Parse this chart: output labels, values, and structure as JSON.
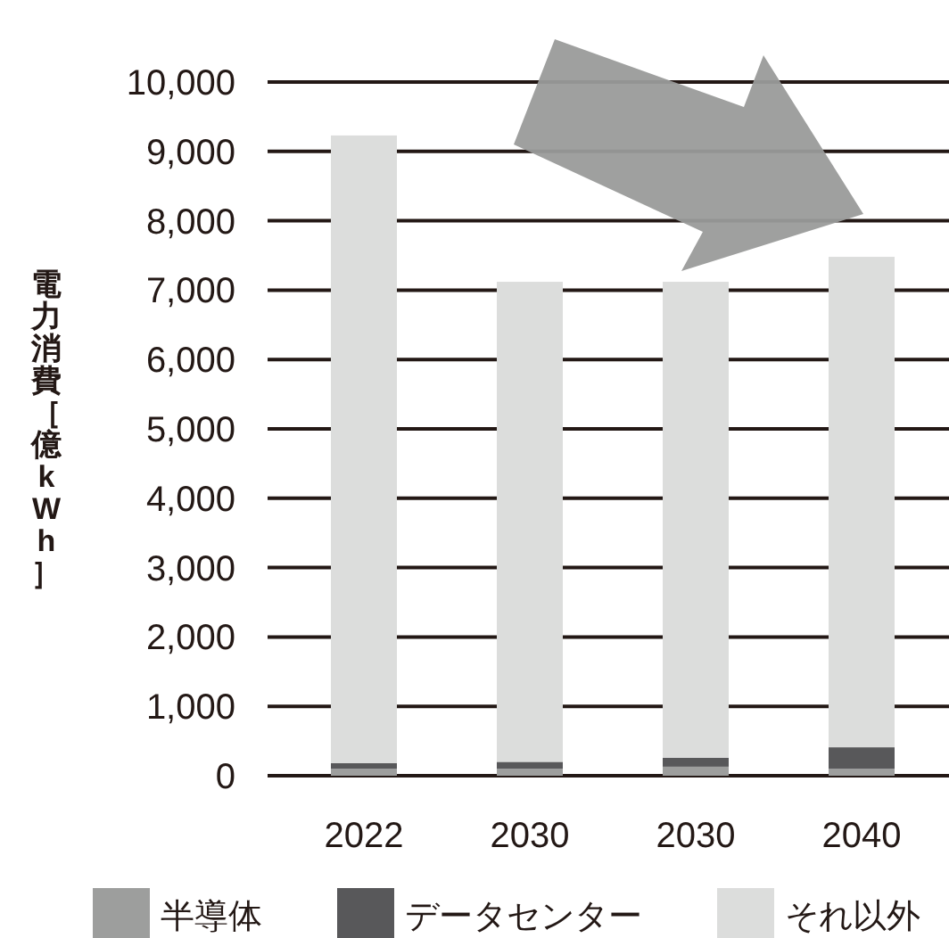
{
  "chart_data": {
    "type": "bar",
    "stacked": true,
    "ylabel": "電力消費［億kWh］",
    "categories": [
      "2022",
      "2030",
      "2030",
      "2040"
    ],
    "series": [
      {
        "name": "半導体",
        "color": "#9d9e9d",
        "values": [
          100,
          100,
          130,
          100
        ]
      },
      {
        "name": "データセンター",
        "color": "#58585a",
        "values": [
          80,
          100,
          130,
          310
        ]
      },
      {
        "name": "それ以外",
        "color": "#dcdddc",
        "values": [
          9050,
          6920,
          6860,
          7070
        ]
      }
    ],
    "ylim": [
      0,
      10000
    ],
    "yticks": [
      {
        "value": 0,
        "label": "0"
      },
      {
        "value": 1000,
        "label": "1,000"
      },
      {
        "value": 2000,
        "label": "2,000"
      },
      {
        "value": 3000,
        "label": "3,000"
      },
      {
        "value": 4000,
        "label": "4,000"
      },
      {
        "value": 5000,
        "label": "5,000"
      },
      {
        "value": 6000,
        "label": "6,000"
      },
      {
        "value": 7000,
        "label": "7,000"
      },
      {
        "value": 8000,
        "label": "8,000"
      },
      {
        "value": 9000,
        "label": "9,000"
      },
      {
        "value": 10000,
        "label": "10,000"
      }
    ],
    "grid": "y",
    "legend": "bottom"
  }
}
